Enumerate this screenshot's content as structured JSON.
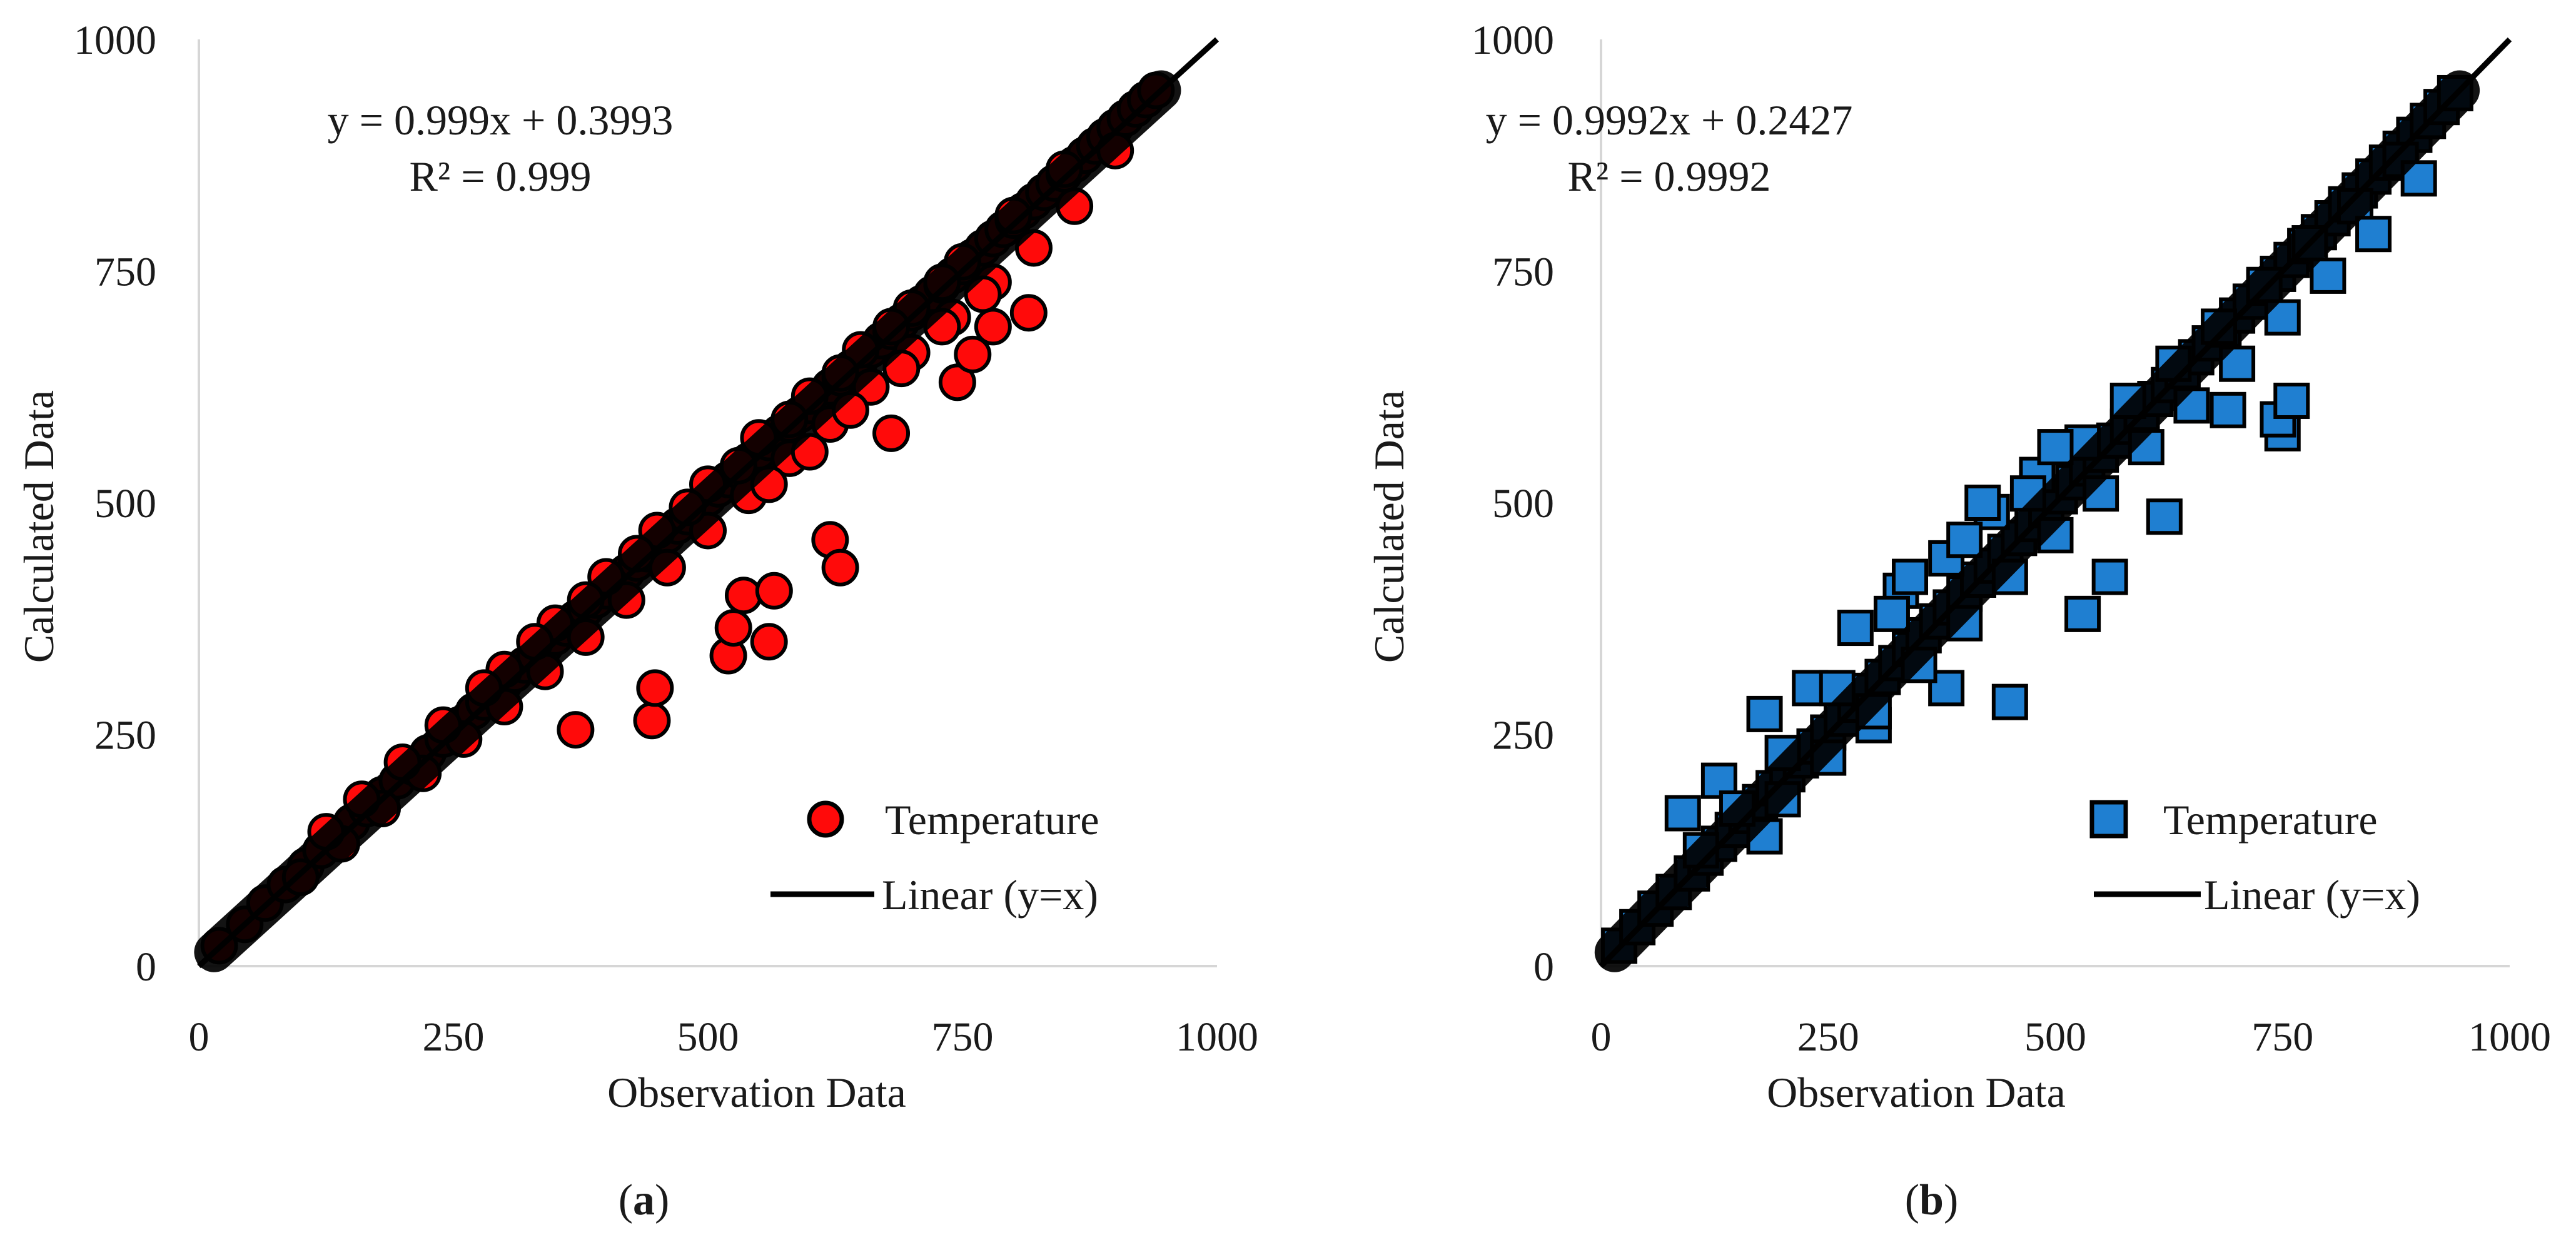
{
  "chart_data": [
    {
      "type": "scatter",
      "panel_label": "a",
      "xlabel": "Observation Data",
      "ylabel": "Calculated Data",
      "xlim": [
        0,
        1000
      ],
      "ylim": [
        0,
        1000
      ],
      "x_ticks": [
        "0",
        "250",
        "500",
        "750",
        "1000"
      ],
      "y_ticks": [
        "0",
        "250",
        "500",
        "750",
        "1000"
      ],
      "equation": "y = 0.999x + 0.3993",
      "r_squared": "R² = 0.999",
      "legend_position": "bottom-right",
      "marker": "circle",
      "marker_color": "#ff0a0a",
      "trend_line": {
        "label": "Linear (y=x)",
        "from": [
          0,
          0
        ],
        "to": [
          1000,
          1000
        ],
        "color": "#000000"
      },
      "series": [
        {
          "name": "Temperature",
          "x": [
            20,
            45,
            65,
            85,
            105,
            120,
            135,
            150,
            165,
            180,
            195,
            210,
            225,
            240,
            255,
            270,
            280,
            290,
            300,
            310,
            320,
            330,
            340,
            350,
            360,
            370,
            380,
            390,
            400,
            410,
            420,
            430,
            440,
            450,
            460,
            470,
            480,
            490,
            500,
            510,
            520,
            530,
            540,
            550,
            560,
            570,
            580,
            590,
            600,
            610,
            620,
            630,
            640,
            650,
            660,
            670,
            680,
            690,
            700,
            710,
            720,
            730,
            740,
            750,
            760,
            770,
            780,
            790,
            800,
            810,
            820,
            830,
            840,
            850,
            860,
            870,
            880,
            890,
            900,
            910,
            920,
            930,
            940,
            100,
            140,
            180,
            220,
            260,
            300,
            340,
            380,
            420,
            460,
            500,
            540,
            580,
            620,
            660,
            700,
            740,
            780,
            820,
            860,
            900,
            370,
            445,
            448,
            520,
            525,
            535,
            560,
            565,
            620,
            630,
            680,
            745,
            760,
            780,
            815,
            560,
            600,
            640,
            690,
            730,
            770,
            300,
            350,
            400,
            450,
            500,
            550,
            600,
            650,
            700,
            750,
            800,
            850,
            125,
            160,
            200,
            240,
            280,
            330,
            380,
            430,
            480,
            530,
            580,
            630,
            680,
            730
          ],
          "y": [
            22,
            45,
            68,
            88,
            108,
            125,
            140,
            155,
            170,
            185,
            200,
            215,
            230,
            245,
            260,
            275,
            285,
            295,
            305,
            315,
            325,
            335,
            345,
            355,
            365,
            375,
            385,
            395,
            405,
            415,
            425,
            435,
            445,
            455,
            465,
            475,
            485,
            495,
            505,
            515,
            525,
            535,
            545,
            555,
            565,
            575,
            585,
            595,
            605,
            615,
            625,
            635,
            645,
            655,
            665,
            675,
            685,
            695,
            705,
            715,
            725,
            735,
            745,
            755,
            765,
            775,
            785,
            795,
            805,
            815,
            825,
            835,
            845,
            855,
            865,
            875,
            885,
            895,
            905,
            915,
            925,
            935,
            945,
            96,
            132,
            170,
            208,
            245,
            280,
            318,
            355,
            395,
            430,
            470,
            508,
            548,
            585,
            625,
            662,
            700,
            738,
            775,
            820,
            880,
            255,
            265,
            300,
            335,
            365,
            400,
            350,
            405,
            460,
            430,
            575,
            630,
            660,
            690,
            705,
            520,
            555,
            600,
            645,
            690,
            725,
            320,
            370,
            420,
            470,
            520,
            570,
            615,
            665,
            710,
            760,
            810,
            860,
            145,
            180,
            220,
            260,
            300,
            350,
            395,
            445,
            495,
            540,
            590,
            640,
            690,
            738
          ]
        }
      ]
    },
    {
      "type": "scatter",
      "panel_label": "b",
      "xlabel": "Observation Data",
      "ylabel": "Calculated Data",
      "xlim": [
        0,
        1000
      ],
      "ylim": [
        0,
        1000
      ],
      "x_ticks": [
        "0",
        "250",
        "500",
        "750",
        "1000"
      ],
      "y_ticks": [
        "0",
        "250",
        "500",
        "750",
        "1000"
      ],
      "equation": "y = 0.9992x + 0.2427",
      "r_squared": "R² = 0.9992",
      "legend_position": "bottom-right",
      "marker": "square",
      "marker_color": "#1f7fd1",
      "trend_line": {
        "label": "Linear (y=x)",
        "from": [
          0,
          0
        ],
        "to": [
          1000,
          1000
        ],
        "color": "#000000"
      },
      "series": [
        {
          "name": "Temperature",
          "x": [
            20,
            40,
            60,
            80,
            100,
            115,
            130,
            145,
            160,
            175,
            190,
            205,
            220,
            235,
            250,
            265,
            280,
            295,
            310,
            325,
            340,
            355,
            370,
            385,
            400,
            415,
            430,
            445,
            460,
            475,
            490,
            505,
            520,
            535,
            550,
            565,
            580,
            595,
            610,
            625,
            640,
            655,
            670,
            685,
            700,
            715,
            730,
            745,
            760,
            775,
            790,
            805,
            820,
            835,
            850,
            865,
            880,
            895,
            910,
            925,
            940,
            90,
            130,
            180,
            230,
            280,
            330,
            380,
            430,
            480,
            530,
            580,
            630,
            680,
            730,
            780,
            830,
            880,
            180,
            300,
            380,
            450,
            530,
            560,
            620,
            690,
            750,
            745,
            760,
            200,
            250,
            300,
            350,
            400,
            450,
            500,
            550,
            600,
            650,
            700,
            750,
            800,
            850,
            900,
            110,
            150,
            200,
            260,
            320,
            340,
            400,
            420,
            470,
            500
          ],
          "y": [
            22,
            42,
            62,
            80,
            100,
            117,
            132,
            147,
            162,
            177,
            192,
            207,
            222,
            237,
            252,
            267,
            282,
            297,
            312,
            327,
            342,
            357,
            372,
            387,
            402,
            417,
            432,
            447,
            462,
            477,
            492,
            507,
            522,
            537,
            552,
            567,
            582,
            597,
            612,
            627,
            642,
            657,
            672,
            687,
            702,
            717,
            732,
            747,
            762,
            777,
            792,
            807,
            822,
            837,
            852,
            867,
            882,
            897,
            912,
            927,
            942,
            165,
            200,
            272,
            300,
            365,
            405,
            440,
            490,
            530,
            565,
            610,
            650,
            690,
            735,
            780,
            820,
            870,
            140,
            260,
            300,
            285,
            380,
            420,
            485,
            600,
            575,
            590,
            610,
            180,
            225,
            275,
            325,
            370,
            420,
            465,
            510,
            560,
            605,
            650,
            700,
            745,
            790,
            850,
            125,
            170,
            230,
            300,
            380,
            420,
            460,
            500,
            510,
            560
          ]
        }
      ]
    }
  ]
}
